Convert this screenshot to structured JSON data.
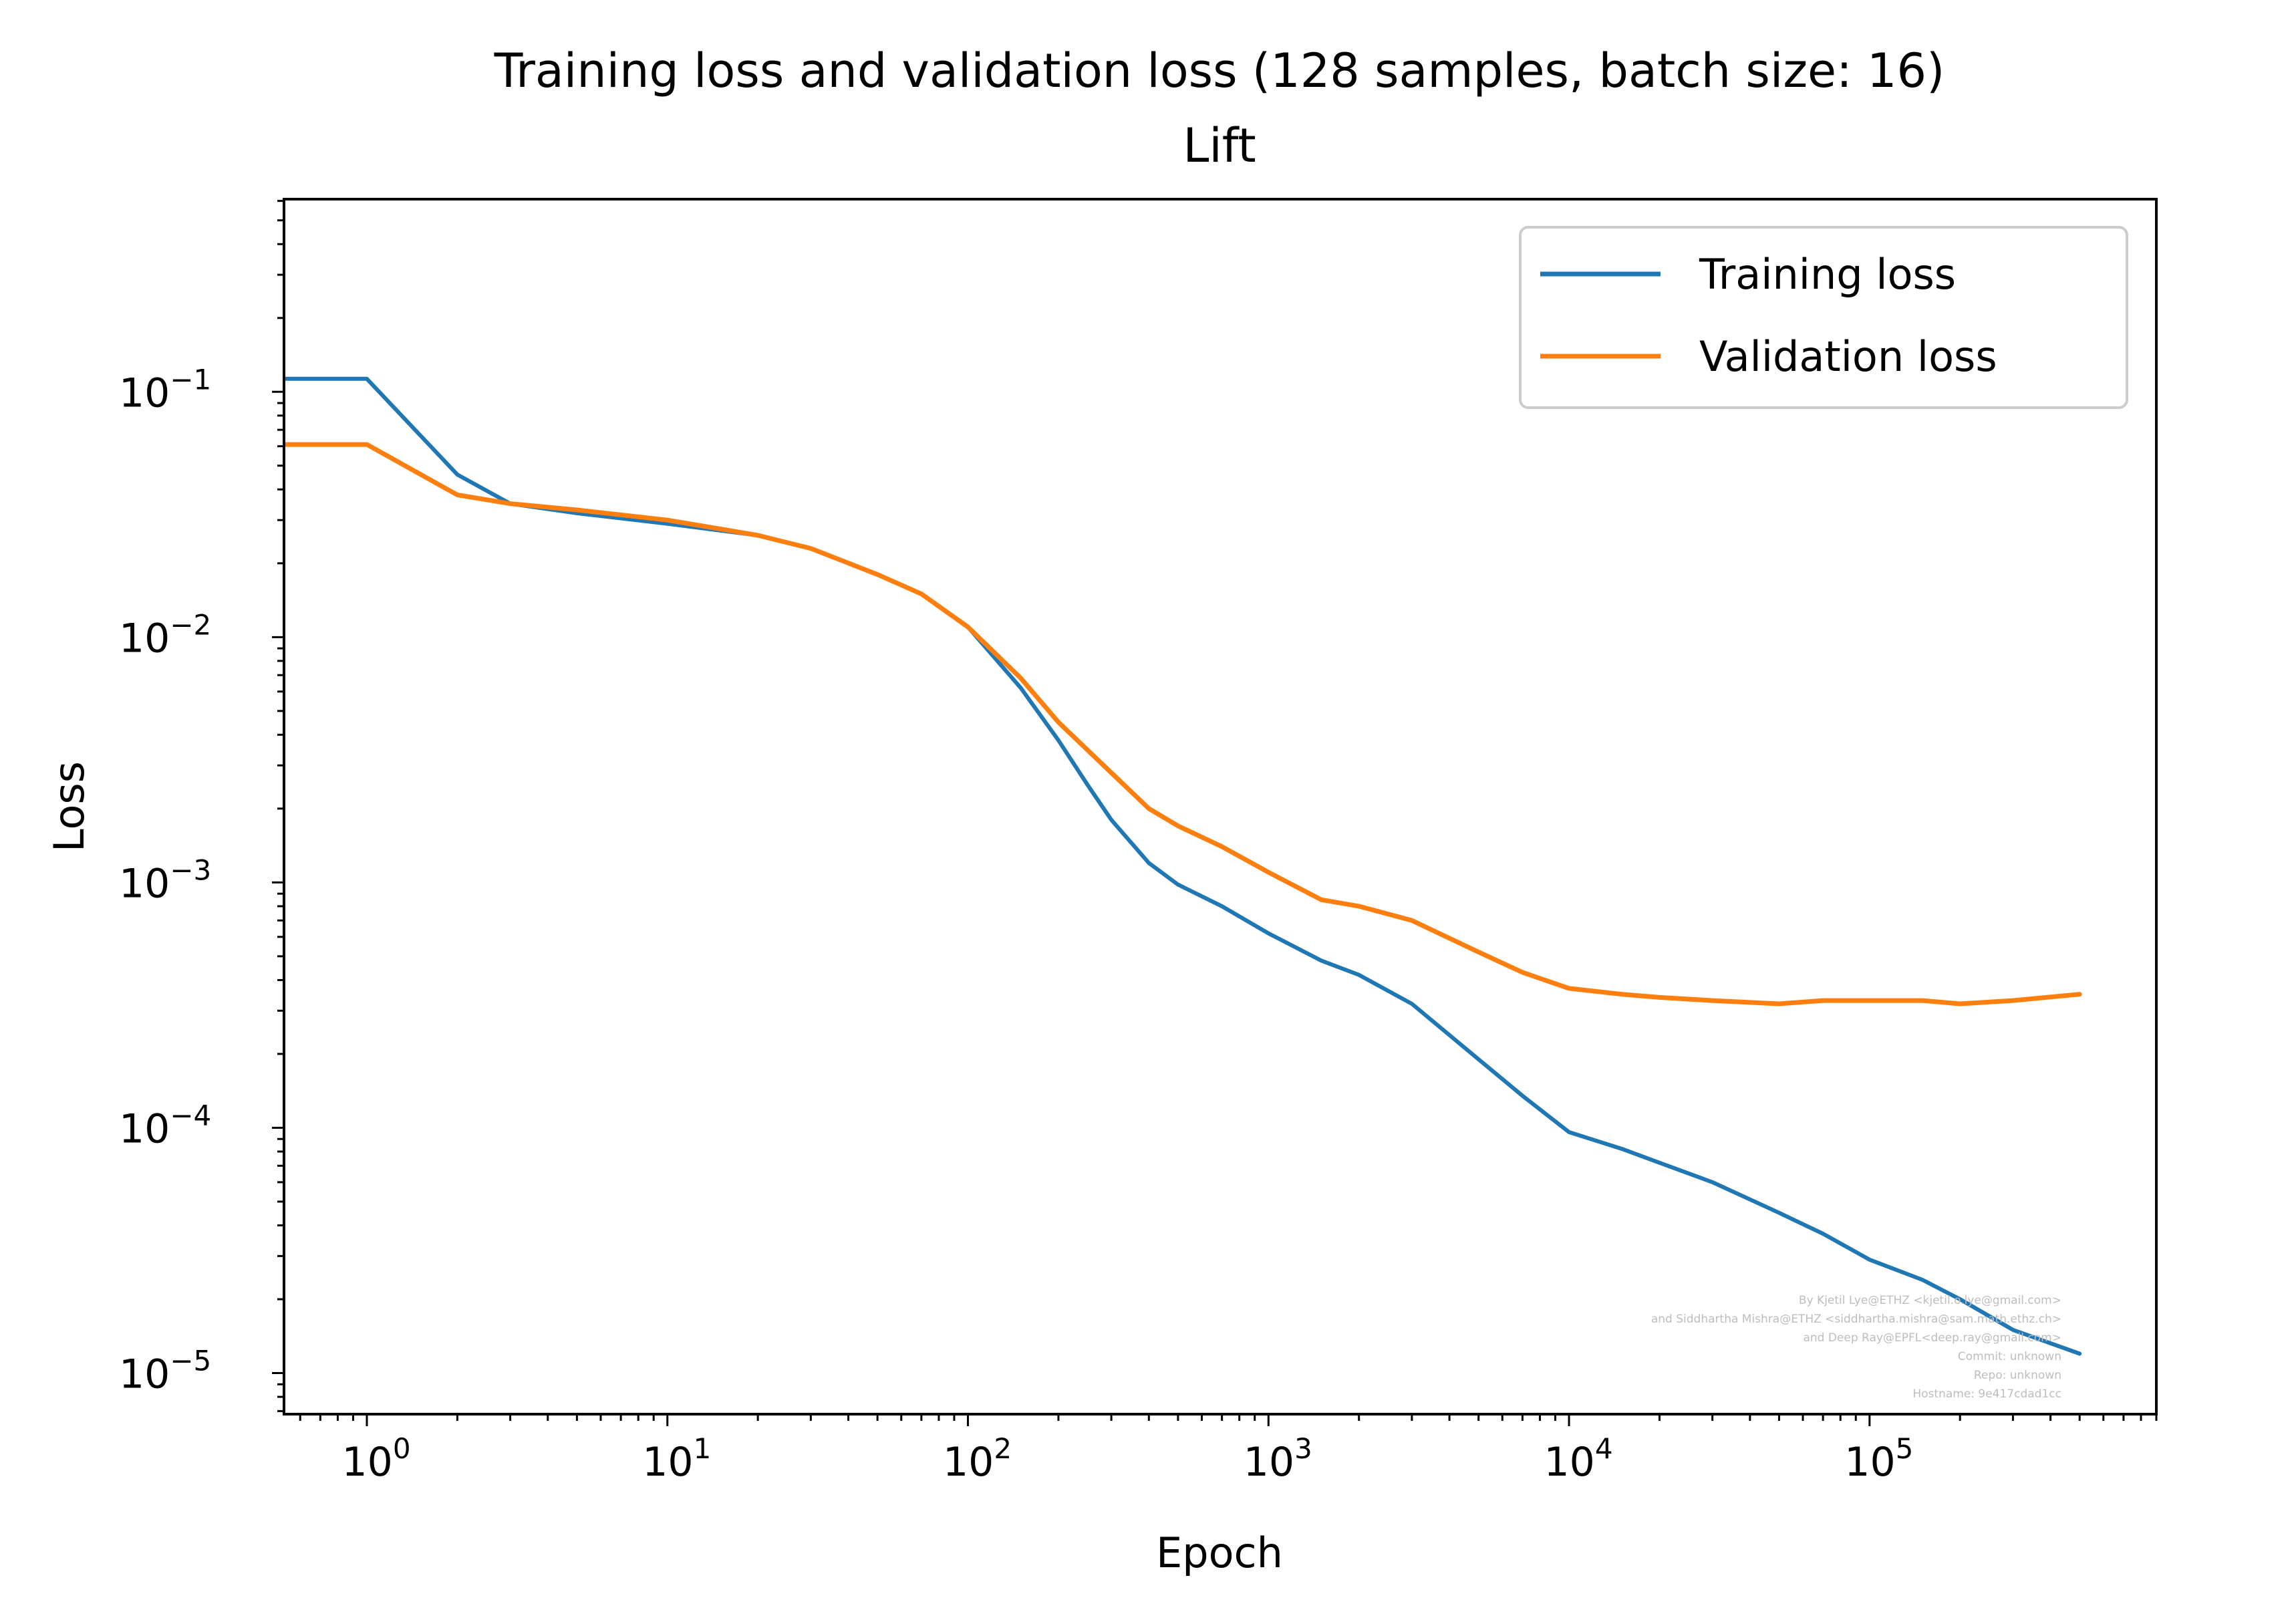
{
  "chart_data": {
    "type": "line",
    "title": "Training loss and validation loss (128 samples, batch size: 16)",
    "subtitle": "Lift",
    "xlabel": "Epoch",
    "ylabel": "Loss",
    "xscale": "log",
    "yscale": "log",
    "xlim": [
      0.53,
      900000
    ],
    "ylim": [
      6.8e-06,
      0.61
    ],
    "grid": false,
    "legend_position": "top-right",
    "x_ticks": [
      {
        "value": 1,
        "base": "10",
        "exp": "0"
      },
      {
        "value": 10,
        "base": "10",
        "exp": "1"
      },
      {
        "value": 100,
        "base": "10",
        "exp": "2"
      },
      {
        "value": 1000,
        "base": "10",
        "exp": "3"
      },
      {
        "value": 10000,
        "base": "10",
        "exp": "4"
      },
      {
        "value": 100000,
        "base": "10",
        "exp": "5"
      }
    ],
    "y_ticks": [
      {
        "value": 0.1,
        "base": "10",
        "exp": "−1"
      },
      {
        "value": 0.01,
        "base": "10",
        "exp": "−2"
      },
      {
        "value": 0.001,
        "base": "10",
        "exp": "−3"
      },
      {
        "value": 0.0001,
        "base": "10",
        "exp": "−4"
      },
      {
        "value": 1e-05,
        "base": "10",
        "exp": "−5"
      }
    ],
    "series": [
      {
        "name": "Training loss",
        "color": "#1f77b4",
        "x": [
          0.5,
          1,
          2,
          3,
          5,
          10,
          20,
          30,
          50,
          70,
          100,
          150,
          200,
          250,
          300,
          400,
          500,
          700,
          1000,
          1500,
          2000,
          3000,
          5000,
          7000,
          10000,
          15000,
          20000,
          30000,
          50000,
          70000,
          100000,
          150000,
          200000,
          300000,
          500000
        ],
        "values": [
          0.113,
          0.113,
          0.046,
          0.035,
          0.032,
          0.029,
          0.026,
          0.023,
          0.018,
          0.015,
          0.011,
          0.0062,
          0.0038,
          0.0025,
          0.0018,
          0.0012,
          0.00098,
          0.0008,
          0.00062,
          0.00048,
          0.00042,
          0.00032,
          0.00019,
          0.000135,
          9.6e-05,
          8.2e-05,
          7.2e-05,
          6e-05,
          4.5e-05,
          3.7e-05,
          2.9e-05,
          2.4e-05,
          2e-05,
          1.5e-05,
          1.2e-05
        ]
      },
      {
        "name": "Validation loss",
        "color": "#ff7f0e",
        "x": [
          0.5,
          1,
          2,
          3,
          5,
          10,
          20,
          30,
          50,
          70,
          100,
          150,
          200,
          300,
          400,
          500,
          700,
          1000,
          1500,
          2000,
          3000,
          5000,
          7000,
          10000,
          15000,
          20000,
          30000,
          50000,
          70000,
          100000,
          150000,
          200000,
          300000,
          500000
        ],
        "values": [
          0.061,
          0.061,
          0.038,
          0.035,
          0.033,
          0.03,
          0.026,
          0.023,
          0.018,
          0.015,
          0.011,
          0.0068,
          0.0045,
          0.0028,
          0.002,
          0.0017,
          0.0014,
          0.0011,
          0.00085,
          0.0008,
          0.0007,
          0.00052,
          0.00043,
          0.00037,
          0.00035,
          0.00034,
          0.00033,
          0.00032,
          0.00033,
          0.00033,
          0.00033,
          0.00032,
          0.00033,
          0.00035
        ]
      }
    ]
  },
  "legend": {
    "training_label": "Training loss",
    "validation_label": "Validation loss"
  },
  "footer": {
    "lines": [
      "By Kjetil Lye@ETHZ <kjetil.o.lye@gmail.com>",
      "and Siddhartha Mishra@ETHZ <siddhartha.mishra@sam.math.ethz.ch>",
      "and Deep Ray@EPFL<deep.ray@gmail.com>",
      "Commit: unknown",
      "Repo: unknown",
      "Hostname: 9e417cdad1cc"
    ]
  }
}
